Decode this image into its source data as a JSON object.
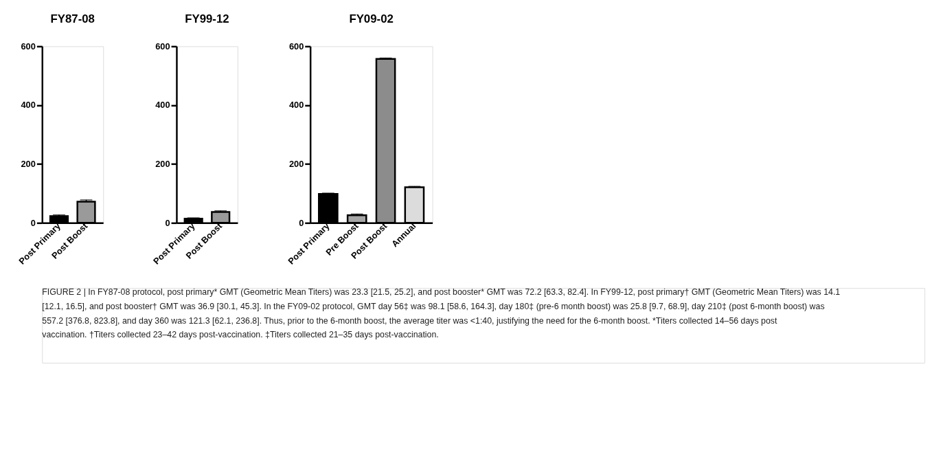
{
  "chart_data": [
    {
      "type": "bar",
      "title": "FY87-08",
      "categories": [
        "Post Primary",
        "Post Boost"
      ],
      "values": [
        23.3,
        72.2
      ],
      "colors": [
        "#000000",
        "#9a9a9a"
      ],
      "errors": [
        [
          23.3,
          27
        ],
        [
          72.2,
          78
        ]
      ],
      "ylim": [
        0,
        600
      ],
      "yticks": [
        0,
        200,
        400,
        600
      ],
      "grid": false,
      "annotations": [
        "FIGURE 2 | In FY87-08 protocol, post primary* GMT (Geometric Mean Titers) was 23.3 [21.5, 25.2], and post booster* GMT was 72.2 [63.3, 82.4]. In FY99-12, post primary† GMT (Geometric Mean Titers) was 14.1 [12.1, 16.5], and post booster† GMT was 36.9 [30.1, 45.3]. In the FY09-02 protocol, GMT day 56‡ was 98.1 [58.6, 164.3], day 180‡ (pre-6 month boost) was 25.8 [9.7, 68.9], day 210‡ (post 6-month boost) was 557.2 [376.8, 823.8], and day 360 was 121.3 [62.1, 236.8]. Thus, prior to the 6-month boost, the average titer was <1:40, justifying the need for the 6-month boost. *Titers collected 14–56 days post vaccination. †Titers collected 23–42 days post-vaccination. ‡Titers collected 21–35 days post-vaccination."
      ]
    },
    {
      "type": "bar",
      "title": "FY99-12",
      "categories": [
        "Post Primary",
        "Post Boost"
      ],
      "values": [
        14.1,
        36.9
      ],
      "colors": [
        "#000000",
        "#9a9a9a"
      ],
      "errors": [
        [
          14.1,
          17
        ],
        [
          36.9,
          41
        ]
      ],
      "ylim": [
        0,
        600
      ],
      "yticks": [
        0,
        200,
        400,
        600
      ],
      "grid": false
    },
    {
      "type": "bar",
      "title": "FY09-02",
      "categories": [
        "Post Primary",
        "Pre Boost",
        "Post Boost",
        "Annual"
      ],
      "values": [
        98.1,
        25.8,
        557.2,
        121.3
      ],
      "colors": [
        "#000000",
        "#a6a6a6",
        "#8c8c8c",
        "#dcdcdc"
      ],
      "errors": [
        [
          98.1,
          101
        ],
        [
          25.8,
          30
        ],
        [
          557.2,
          560
        ],
        [
          121.3,
          124
        ]
      ],
      "ylim": [
        0,
        600
      ],
      "yticks": [
        0,
        200,
        400,
        600
      ],
      "grid": false
    }
  ]
}
